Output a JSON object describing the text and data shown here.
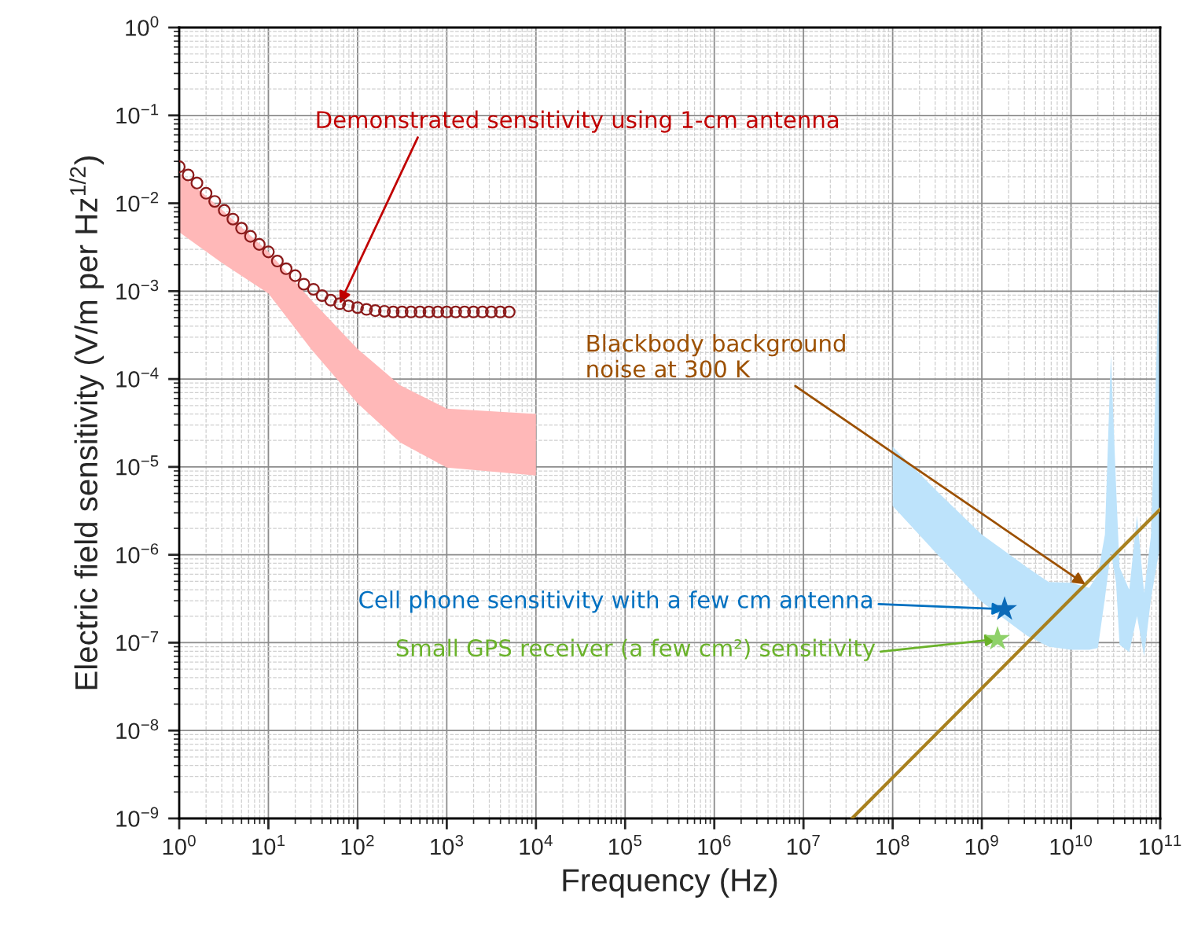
{
  "chart_data": {
    "type": "line",
    "xlabel": "Frequency (Hz)",
    "ylabel": "Electric field sensitivity (V/m per Hz$^{1/2}$)",
    "log": "xy",
    "xlim": [
      1,
      100000000000.0
    ],
    "ylim": [
      1e-09,
      1
    ],
    "xticks": [
      {
        "value": 1,
        "label": "10$^{0}$"
      },
      {
        "value": 10,
        "label": "10$^{1}$"
      },
      {
        "value": 100,
        "label": "10$^{2}$"
      },
      {
        "value": 1000,
        "label": "10$^{3}$"
      },
      {
        "value": 10000.0,
        "label": "10$^{4}$"
      },
      {
        "value": 100000.0,
        "label": "10$^{5}$"
      },
      {
        "value": 1000000.0,
        "label": "10$^{6}$"
      },
      {
        "value": 10000000.0,
        "label": "10$^{7}$"
      },
      {
        "value": 100000000.0,
        "label": "10$^{8}$"
      },
      {
        "value": 1000000000.0,
        "label": "10$^{9}$"
      },
      {
        "value": 10000000000.0,
        "label": "10$^{10}$"
      },
      {
        "value": 100000000000.0,
        "label": "10$^{11}$"
      }
    ],
    "yticks": [
      {
        "value": 1e-09,
        "label": "10$^{−9}$"
      },
      {
        "value": 1e-08,
        "label": "10$^{−8}$"
      },
      {
        "value": 1e-07,
        "label": "10$^{−7}$"
      },
      {
        "value": 1e-06,
        "label": "10$^{−6}$"
      },
      {
        "value": 1e-05,
        "label": "10$^{−5}$"
      },
      {
        "value": 0.0001,
        "label": "10$^{−4}$"
      },
      {
        "value": 0.001,
        "label": "10$^{−3}$"
      },
      {
        "value": 0.01,
        "label": "10$^{−2}$"
      },
      {
        "value": 0.1,
        "label": "10$^{−1}$"
      },
      {
        "value": 1,
        "label": "10$^{0}$"
      }
    ],
    "grid": true,
    "series": [
      {
        "type": "area",
        "color": "#ffb8b8",
        "x": [
          1,
          3,
          10,
          30,
          100,
          300,
          1000,
          10000
        ],
        "lower": [
          0.0047,
          0.0021,
          0.00094,
          0.00022,
          5.3e-05,
          1.9e-05,
          9.8e-06,
          8e-06
        ],
        "values": [
          null,
          null,
          null,
          null,
          null,
          null,
          null,
          null
        ],
        "upper": [
          0.022,
          0.0085,
          0.0028,
          0.0008,
          0.00022,
          8.5e-05,
          4.6e-05,
          4e-05
        ]
      },
      {
        "type": "area",
        "color": "#bde3fb",
        "x": [
          100000000.0,
          320000000.0,
          1000000000.0,
          3200000000.0,
          5600000000.0,
          10000000000.0,
          16000000000.0,
          20000000000.0,
          24000000000.0,
          28000000000.0,
          32000000000.0,
          35000000000.0,
          45000000000.0,
          55000000000.0,
          66000000000.0,
          79000000000.0,
          100000000000.0
        ],
        "lower": [
          3.6e-06,
          1e-06,
          2.9e-07,
          1.2e-07,
          9e-08,
          8.3e-08,
          8.3e-08,
          8.7e-08,
          3.2e-07,
          1.1e-06,
          4.8e-07,
          9.5e-08,
          7.8e-08,
          2e-07,
          7e-08,
          3.2e-07,
          1.3e-06
        ],
        "values": [
          null,
          null,
          null,
          null,
          null,
          null,
          null,
          null,
          null,
          null,
          null,
          null,
          null,
          null,
          null,
          null,
          null
        ],
        "upper": [
          1.7e-05,
          5.2e-06,
          1.7e-06,
          7.2e-07,
          4.9e-07,
          4.8e-07,
          4.2e-07,
          6e-07,
          1.7e-06,
          0.00019,
          6e-06,
          7.2e-07,
          4e-07,
          2.8e-06,
          3.7e-07,
          1.7e-06,
          0.0043
        ]
      },
      {
        "type": "scatter",
        "marker": "circle",
        "color": "#8b1a1a",
        "x": [
          1,
          1.26,
          1.58,
          2.0,
          2.5,
          3.2,
          4.0,
          5.0,
          6.3,
          7.9,
          10,
          12.6,
          15.8,
          20,
          25,
          32,
          40,
          50,
          63,
          79,
          100,
          126,
          158,
          200,
          251,
          316,
          398,
          501,
          631,
          794,
          1000,
          1259,
          1585,
          1995,
          2512,
          3162,
          3981,
          5012
        ],
        "values": [
          0.026,
          0.021,
          0.017,
          0.013,
          0.0105,
          0.0083,
          0.0066,
          0.0052,
          0.0042,
          0.0034,
          0.0028,
          0.0022,
          0.0018,
          0.0015,
          0.0012,
          0.00105,
          0.00089,
          0.00079,
          0.00072,
          0.00068,
          0.00065,
          0.00062,
          0.0006,
          0.00059,
          0.00058,
          0.00058,
          0.00058,
          0.00058,
          0.00058,
          0.00058,
          0.00058,
          0.00058,
          0.00058,
          0.00058,
          0.00058,
          0.00058,
          0.00058,
          0.00058
        ]
      },
      {
        "color": "#a8801e",
        "line_style": "solid",
        "x": [
          35000000.0,
          100000000000.0
        ],
        "values": [
          1e-09,
          3.3e-06
        ]
      },
      {
        "type": "scatter",
        "marker": "star",
        "color": "#0b6ab8",
        "x": [
          1800000000.0
        ],
        "values": [
          2.4e-07
        ]
      },
      {
        "type": "scatter",
        "marker": "star",
        "color": "#8fd16a",
        "x": [
          1500000000.0
        ],
        "values": [
          1.1e-07
        ]
      }
    ],
    "annotations": [
      {
        "text": "Demonstrated sensitivity using 1-cm antenna",
        "x": 63,
        "y": 0.00072
      },
      {
        "text": "Blackbody background\nnoise at 300 K",
        "x": 14500000000.0,
        "y": 4.6e-07
      },
      {
        "text": "Cell phone sensitivity with a few cm antenna",
        "x": 1800000000.0,
        "y": 2.4e-07
      },
      {
        "text": "Small GPS receiver (a few cm²) sensitivity",
        "x": 1500000000.0,
        "y": 1.1e-07
      }
    ]
  }
}
